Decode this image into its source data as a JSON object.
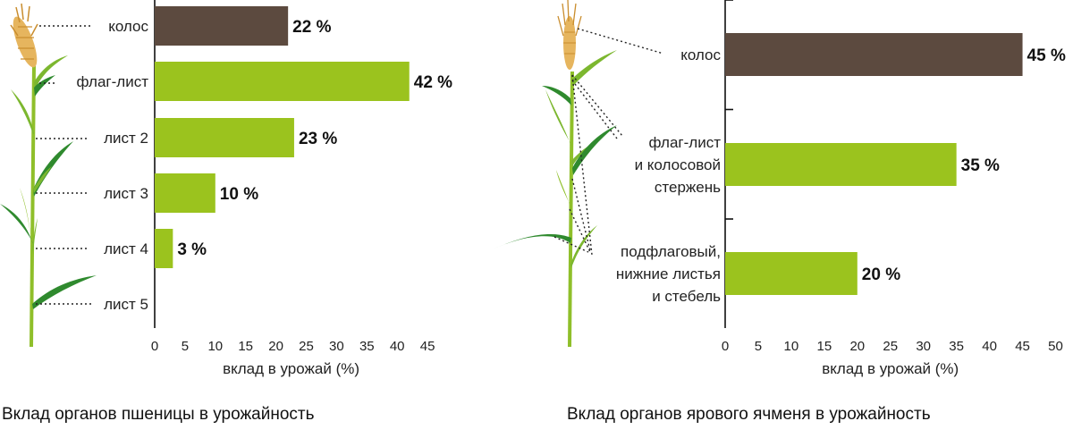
{
  "chart_data": [
    {
      "type": "bar",
      "orientation": "horizontal",
      "title": "Вклад органов пшеницы в урожайность",
      "xlabel": "вклад в урожай (%)",
      "ylabel": "",
      "xlim": [
        0,
        45
      ],
      "x_ticks": [
        "0",
        "5",
        "10",
        "15",
        "20",
        "25",
        "30",
        "35",
        "40",
        "45"
      ],
      "grid": false,
      "categories": [
        "колос",
        "флаг-лист",
        "лист 2",
        "лист 3",
        "лист 4",
        "лист 5"
      ],
      "values": [
        22,
        42,
        23,
        10,
        3,
        null
      ],
      "value_labels": [
        "22 %",
        "42 %",
        "23 %",
        "10 %",
        "3 %",
        ""
      ],
      "bar_colors": [
        "#5c4a3f",
        "#9bc31e",
        "#9bc31e",
        "#9bc31e",
        "#9bc31e",
        "#9bc31e"
      ]
    },
    {
      "type": "bar",
      "orientation": "horizontal",
      "title": "Вклад органов ярового ячменя в урожайность",
      "xlabel": "вклад в урожай (%)",
      "ylabel": "",
      "xlim": [
        0,
        50
      ],
      "x_ticks": [
        "0",
        "5",
        "10",
        "15",
        "20",
        "25",
        "30",
        "35",
        "40",
        "45",
        "50"
      ],
      "grid": false,
      "categories": [
        [
          "колос"
        ],
        [
          "флаг-лист",
          "и колосовой",
          "стержень"
        ],
        [
          "подфлаговый,",
          "нижние листья",
          "и стебель"
        ]
      ],
      "values": [
        45,
        35,
        20
      ],
      "value_labels": [
        "45 %",
        "35 %",
        "20 %"
      ],
      "bar_colors": [
        "#5c4a3f",
        "#9bc31e",
        "#9bc31e"
      ]
    }
  ],
  "illustration_colors": {
    "stem": "#8fbf2a",
    "leaf": "#2f8a2e",
    "leaf_light": "#7cb72f",
    "ear": "#e6b55e",
    "ear_dark": "#c98d2e"
  }
}
